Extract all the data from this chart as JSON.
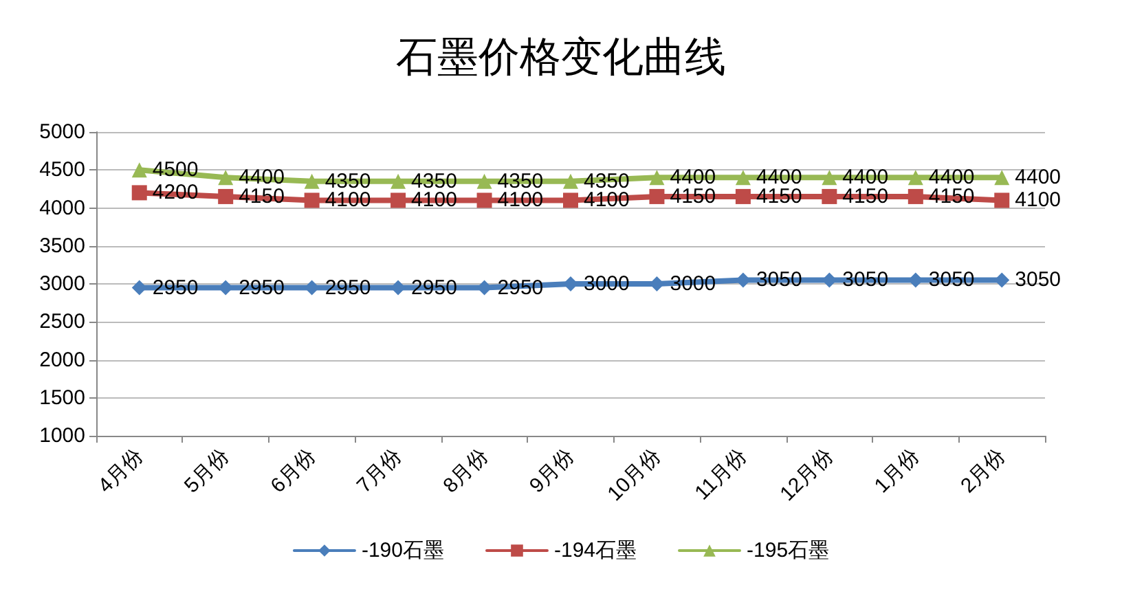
{
  "chart_data": {
    "type": "line",
    "title": "石墨价格变化曲线",
    "categories": [
      "4月份",
      "5月份",
      "6月份",
      "7月份",
      "8月份",
      "9月份",
      "10月份",
      "11月份",
      "12月份",
      "1月份",
      "2月份"
    ],
    "series": [
      {
        "name": "-190石墨",
        "color": "#4a7ebb",
        "marker": "diamond",
        "values": [
          2950,
          2950,
          2950,
          2950,
          2950,
          3000,
          3000,
          3050,
          3050,
          3050,
          3050
        ]
      },
      {
        "name": "-194石墨",
        "color": "#be4b48",
        "marker": "square",
        "values": [
          4200,
          4150,
          4100,
          4100,
          4100,
          4100,
          4150,
          4150,
          4150,
          4150,
          4100
        ]
      },
      {
        "name": "-195石墨",
        "color": "#98b954",
        "marker": "triangle",
        "values": [
          4500,
          4400,
          4350,
          4350,
          4350,
          4350,
          4400,
          4400,
          4400,
          4400,
          4400
        ]
      }
    ],
    "ylim": [
      1000,
      5000
    ],
    "yticks": [
      1000,
      1500,
      2000,
      2500,
      3000,
      3500,
      4000,
      4500,
      5000
    ],
    "grid": "y",
    "legend": "bottom",
    "data_labels": true,
    "line_style": "solid"
  }
}
